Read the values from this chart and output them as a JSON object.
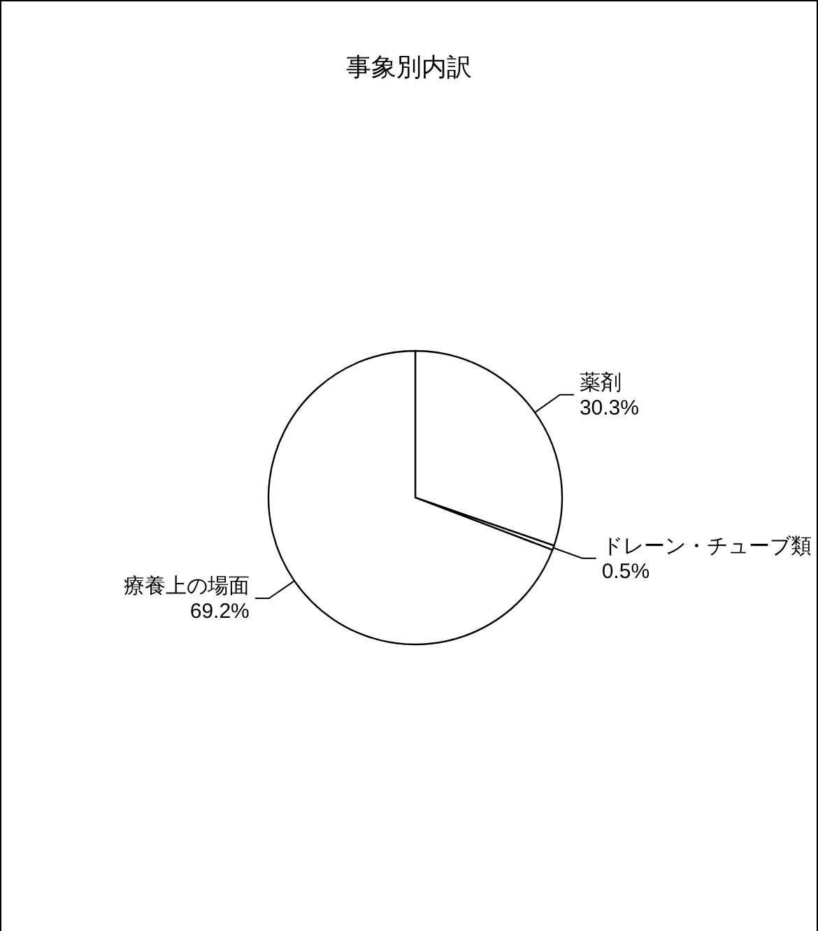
{
  "chart_data": {
    "type": "pie",
    "title": "事象別内訳",
    "categories": [
      "薬剤",
      "ドレーン・チューブ類",
      "療養上の場面"
    ],
    "values": [
      30.3,
      0.5,
      69.2
    ],
    "colors": [
      "#ffffff",
      "#ffffff",
      "#ffffff"
    ],
    "value_labels": [
      "30.3%",
      "0.5%",
      "69.2%"
    ]
  }
}
